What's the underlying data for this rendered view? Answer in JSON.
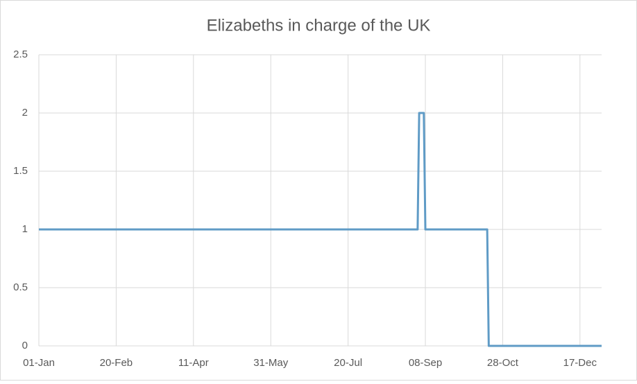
{
  "chart_data": {
    "type": "line",
    "title": "Elizabeths in charge of the UK",
    "x": [
      0,
      245,
      246,
      249,
      250,
      290,
      291,
      364
    ],
    "series": [
      {
        "color": "#5f9bc6",
        "values": [
          1,
          1,
          2,
          2,
          1,
          1,
          0,
          0
        ]
      }
    ],
    "xlim": [
      0,
      364
    ],
    "xticks": [
      {
        "value": 0,
        "label": "01-Jan"
      },
      {
        "value": 50,
        "label": "20-Feb"
      },
      {
        "value": 100,
        "label": "11-Apr"
      },
      {
        "value": 150,
        "label": "31-May"
      },
      {
        "value": 200,
        "label": "20-Jul"
      },
      {
        "value": 250,
        "label": "08-Sep"
      },
      {
        "value": 300,
        "label": "28-Oct"
      },
      {
        "value": 350,
        "label": "17-Dec"
      }
    ],
    "ylim": [
      0,
      2.5
    ],
    "yticks": [
      0,
      0.5,
      1,
      1.5,
      2,
      2.5
    ],
    "grid": true
  }
}
